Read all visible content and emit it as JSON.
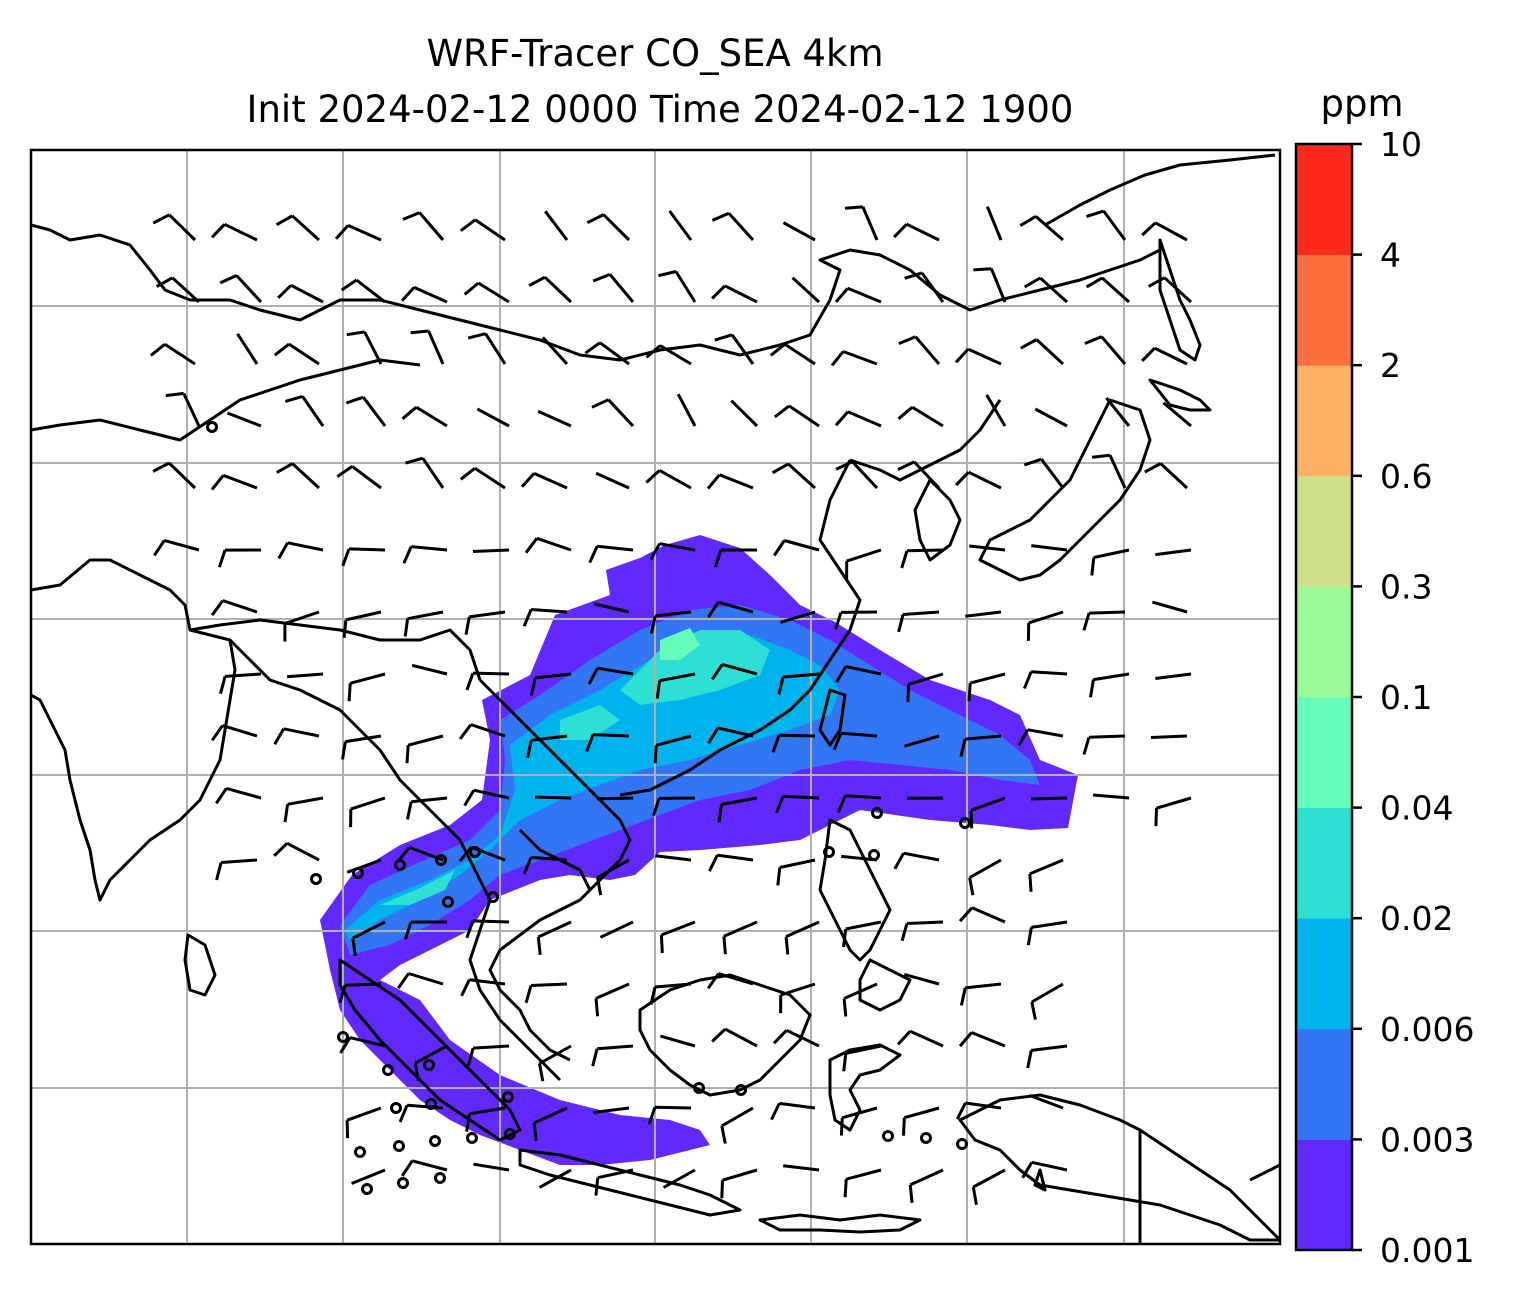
{
  "title": {
    "line1": "WRF-Tracer CO_SEA 4km",
    "line2": "Init 2024-02-12 0000 Time 2024-02-12 1900"
  },
  "colorbar": {
    "unit_label": "ppm",
    "ticks": [
      "10",
      "4",
      "2",
      "0.6",
      "0.3",
      "0.1",
      "0.04",
      "0.02",
      "0.006",
      "0.003",
      "0.001"
    ],
    "bins": [
      {
        "range": "0.001-0.003",
        "color": "#6128ff"
      },
      {
        "range": "0.003-0.006",
        "color": "#3276f5"
      },
      {
        "range": "0.006-0.02",
        "color": "#00b3ec"
      },
      {
        "range": "0.02-0.04",
        "color": "#2edfd3"
      },
      {
        "range": "0.04-0.1",
        "color": "#66fbb9"
      },
      {
        "range": "0.1-0.3",
        "color": "#9bfb98"
      },
      {
        "range": "0.3-0.6",
        "color": "#cfe08a"
      },
      {
        "range": "0.6-2",
        "color": "#fcb062"
      },
      {
        "range": "2-4",
        "color": "#fd703d"
      },
      {
        "range": "4-10",
        "color": "#fd291a"
      }
    ]
  },
  "map": {
    "field": "CO tracer concentration",
    "overlay": "wind barbs",
    "gridlines": true,
    "coastlines": true,
    "plume_colors": {
      "outer": "#6128ff",
      "mid": "#3276f5",
      "inner": "#00b3ec",
      "core": "#2edfd3",
      "peak": "#66fbb9"
    }
  }
}
